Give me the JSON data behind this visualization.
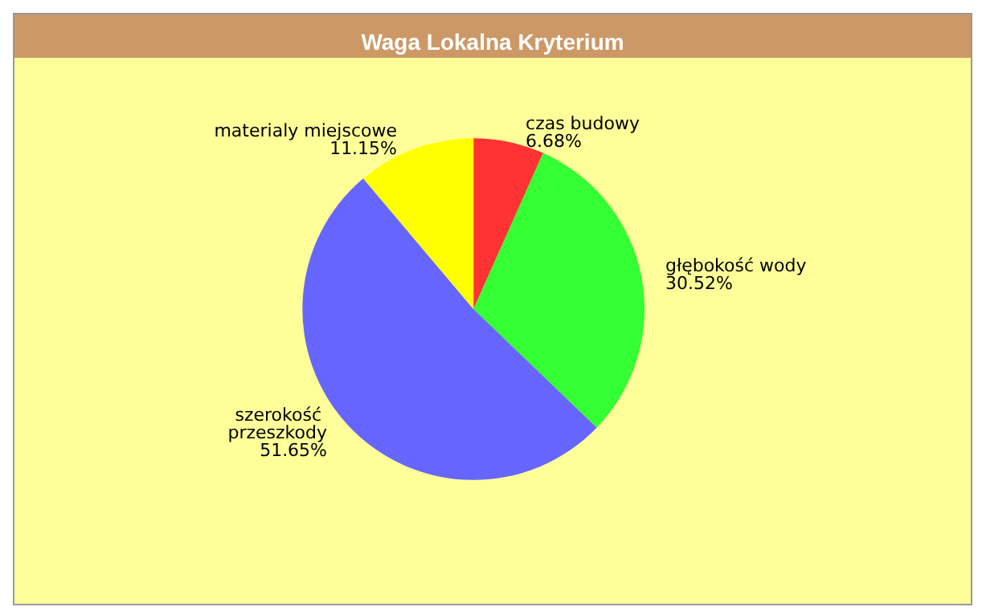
{
  "chart_data": {
    "type": "pie",
    "title": "Waga Lokalna Kryterium",
    "categories": [
      "czas budowy",
      "głębokość wody",
      "szerokość przeszkody",
      "materialy miejscowe"
    ],
    "values": [
      6.68,
      30.52,
      51.65,
      11.15
    ],
    "colors": [
      "#ff3333",
      "#33ff33",
      "#6666ff",
      "#ffff00"
    ],
    "value_labels": [
      "6.68%",
      "30.52%",
      "51.65%",
      "11.15%"
    ],
    "legend": false
  }
}
